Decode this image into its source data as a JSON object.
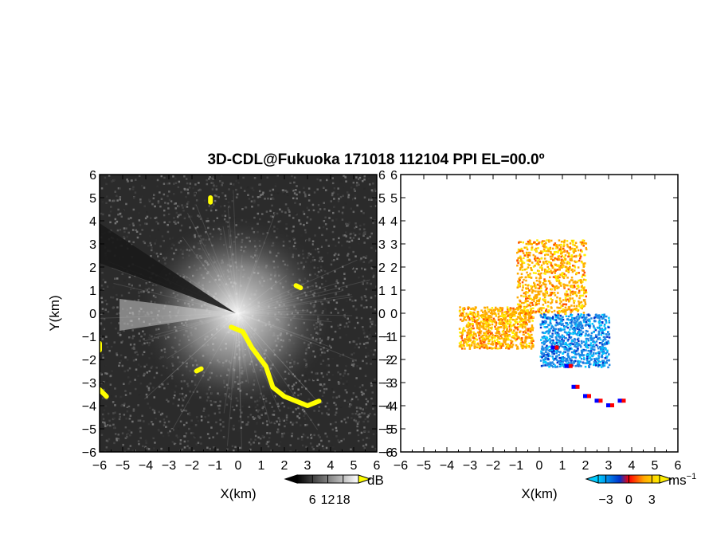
{
  "title": "3D-CDL@Fukuoka 171018 112104 PPI EL=00.0º",
  "chart_data": [
    {
      "type": "heatmap",
      "panel": "reflectivity (SNR) PPI",
      "xlabel": "X(km)",
      "ylabel": "Y(km)",
      "xlim": [
        -6,
        6
      ],
      "ylim": [
        -6,
        6
      ],
      "xticks": [
        "−6",
        "−5",
        "−4",
        "−3",
        "−2",
        "−1",
        "0",
        "1",
        "2",
        "3",
        "4",
        "5",
        "6"
      ],
      "yticks": [
        "−6",
        "−5",
        "−4",
        "−3",
        "−2",
        "−1",
        "0",
        "1",
        "2",
        "3",
        "4",
        "5",
        "6"
      ],
      "colorbar": {
        "unit": "dB",
        "tick_labels": [
          "6",
          "12",
          "18"
        ],
        "tick_values": [
          6,
          12,
          18
        ],
        "range": [
          0,
          24
        ],
        "colors": [
          "#000000",
          "#ffffff"
        ]
      },
      "background_color": "#2b2b2b",
      "highlight_color": "#ffff00",
      "highlight_regions": [
        {
          "points": [
            [
              -0.3,
              -0.6
            ],
            [
              0.2,
              -0.8
            ],
            [
              0.6,
              -1.5
            ],
            [
              1.2,
              -2.3
            ],
            [
              1.5,
              -3.2
            ],
            [
              2.0,
              -3.6
            ],
            [
              2.5,
              -3.8
            ],
            [
              3.0,
              -4.0
            ],
            [
              3.5,
              -3.8
            ]
          ]
        },
        {
          "points": [
            [
              -6.0,
              -1.3
            ],
            [
              -6.0,
              -1.6
            ]
          ]
        },
        {
          "points": [
            [
              -6.0,
              -3.3
            ],
            [
              -5.7,
              -3.6
            ]
          ]
        },
        {
          "points": [
            [
              -1.6,
              -2.4
            ],
            [
              -1.8,
              -2.5
            ]
          ]
        },
        {
          "points": [
            [
              2.5,
              1.2
            ],
            [
              2.7,
              1.1
            ]
          ]
        },
        {
          "points": [
            [
              -1.2,
              4.8
            ],
            [
              -1.2,
              5.0
            ]
          ]
        }
      ]
    },
    {
      "type": "heatmap",
      "panel": "radial velocity PPI",
      "xlabel": "X(km)",
      "xlim": [
        -6,
        6
      ],
      "ylim": [
        -6,
        6
      ],
      "xticks": [
        "−6",
        "−5",
        "−4",
        "−3",
        "−2",
        "−1",
        "0",
        "1",
        "2",
        "3",
        "4",
        "5",
        "6"
      ],
      "colorbar": {
        "unit": "ms",
        "unit_exponent": "−1",
        "tick_labels": [
          "−3",
          "0",
          "3"
        ],
        "tick_values": [
          -3,
          0,
          3
        ],
        "range": [
          -4,
          4
        ],
        "colors": [
          "#00ccff",
          "#0033cc",
          "#ff0000",
          "#ffaa00",
          "#ffee00"
        ]
      },
      "approach_color": "#1e88e5",
      "recede_color": "#ff8c00",
      "edge_colors": [
        "#0000ff",
        "#ff0000"
      ],
      "features": [
        {
          "region": "northern sector (receding)",
          "x": [
            -1.0,
            2.0
          ],
          "y": [
            0.0,
            3.2
          ],
          "velocity": 2.5
        },
        {
          "region": "south-east sector (approaching)",
          "x": [
            0.0,
            3.0
          ],
          "y": [
            -2.3,
            0.0
          ],
          "velocity": -2.0
        },
        {
          "region": "western sector (receding)",
          "x": [
            -3.5,
            -0.3
          ],
          "y": [
            -1.5,
            0.3
          ],
          "velocity": 2.0
        }
      ]
    }
  ]
}
